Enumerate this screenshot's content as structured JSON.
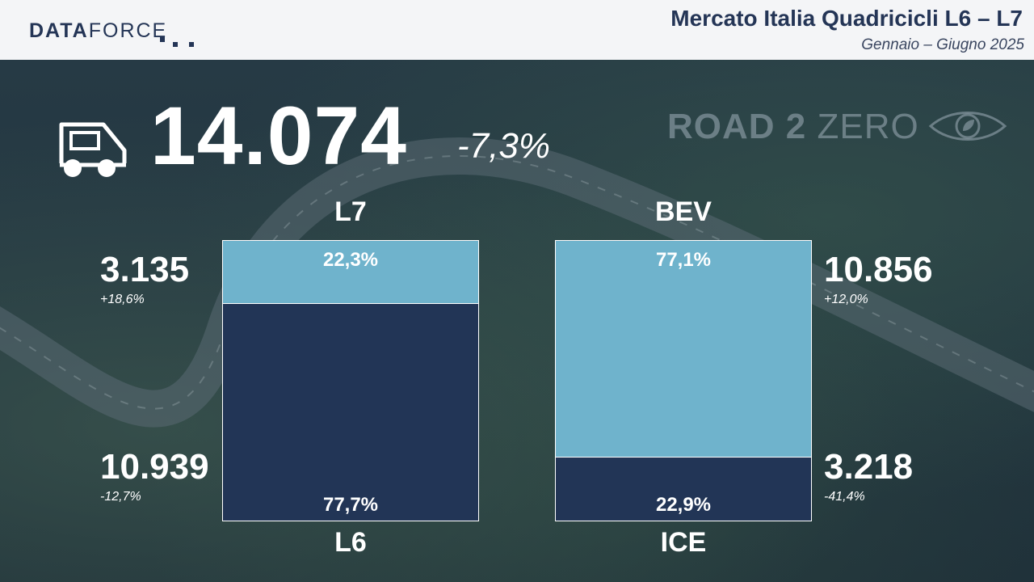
{
  "header": {
    "logo_main": "DATA",
    "logo_thin": "FORCE",
    "title": "Mercato Italia Quadricicli L6 – L7",
    "subtitle": "Gennaio – Giugno 2025",
    "brand_color": "#243556"
  },
  "badge": {
    "road2zero_a": "ROAD 2",
    "road2zero_b": "ZERO"
  },
  "total": {
    "value": "14.074",
    "change": "-7,3%"
  },
  "chart_data": [
    {
      "type": "bar",
      "stacked": true,
      "top_category": "L7",
      "bottom_category": "L6",
      "series": [
        {
          "name": "L7",
          "percent": 22.3,
          "percent_label": "22,3%",
          "units": "3.135",
          "change": "+18,6%",
          "color": "#6fb3cc"
        },
        {
          "name": "L6",
          "percent": 77.7,
          "percent_label": "77,7%",
          "units": "10.939",
          "change": "-12,7%",
          "color": "#223556"
        }
      ]
    },
    {
      "type": "bar",
      "stacked": true,
      "top_category": "BEV",
      "bottom_category": "ICE",
      "series": [
        {
          "name": "BEV",
          "percent": 77.1,
          "percent_label": "77,1%",
          "units": "10.856",
          "change": "+12,0%",
          "color": "#6fb3cc"
        },
        {
          "name": "ICE",
          "percent": 22.9,
          "percent_label": "22,9%",
          "units": "3.218",
          "change": "-41,4%",
          "color": "#223556"
        }
      ]
    }
  ]
}
